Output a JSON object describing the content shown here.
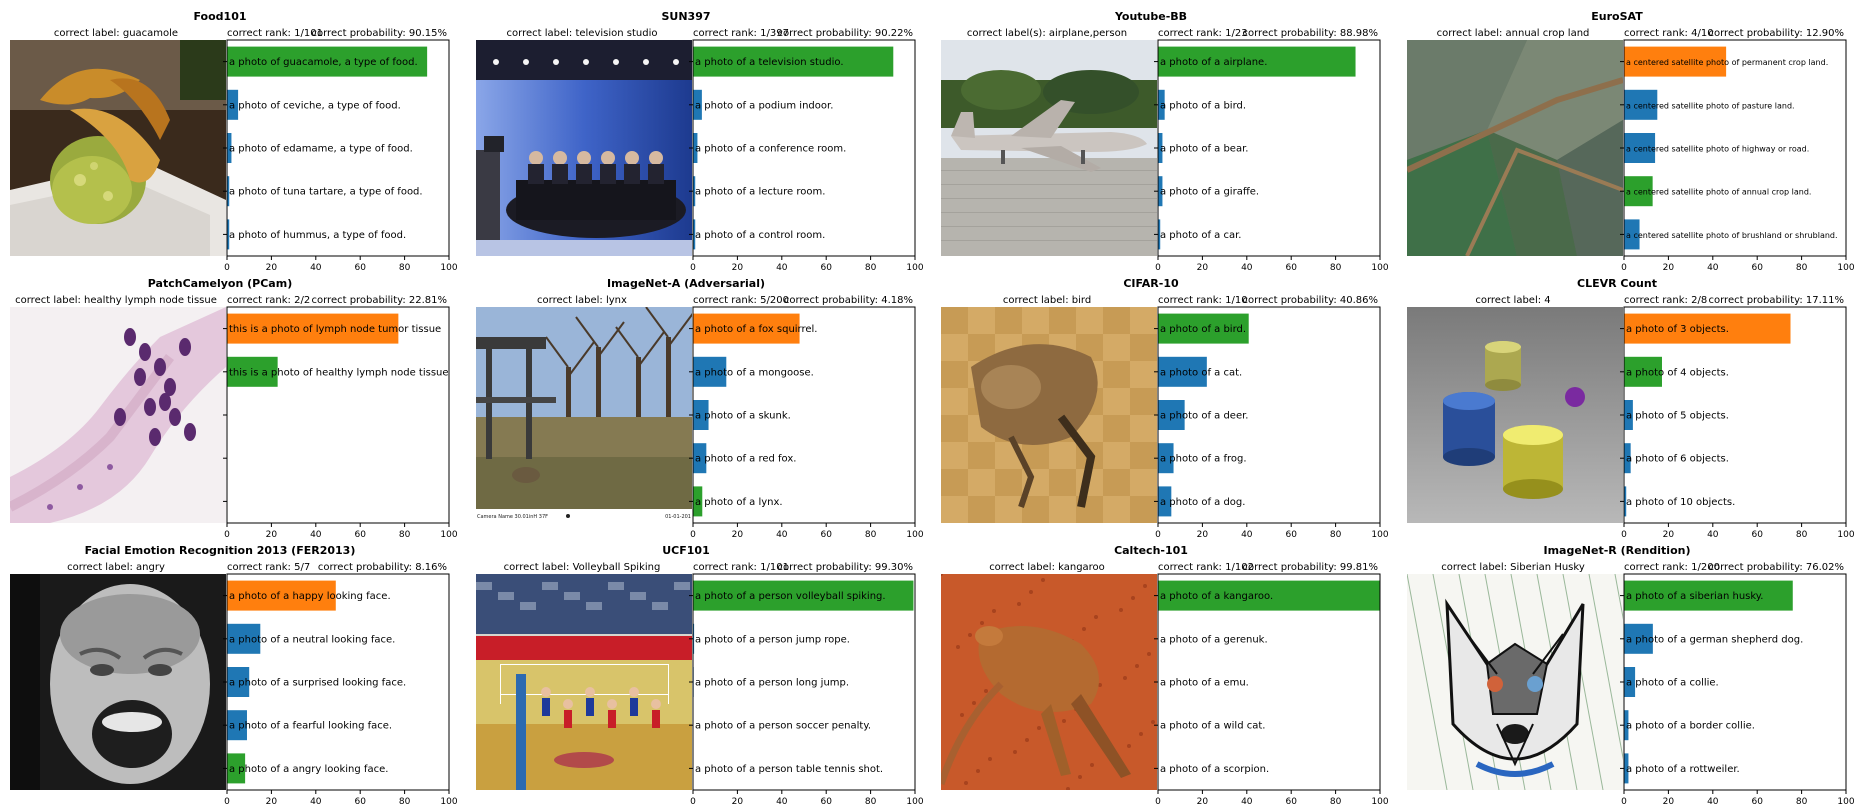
{
  "colors": {
    "green": "#2ca02c",
    "blue": "#1f77b4",
    "orange": "#ff7f0e"
  },
  "axis": {
    "xlim": [
      0,
      100
    ],
    "ticks": [
      "0",
      "20",
      "40",
      "60",
      "80",
      "100"
    ]
  },
  "chart_data": [
    {
      "type": "bar",
      "orientation": "horizontal",
      "title": "Food101",
      "correct_label": "correct label: guacamole",
      "rank": "correct rank: 1/101",
      "probability": "correct probability: 90.15%",
      "categories": [
        "a photo of guacamole, a type of food.",
        "a photo of ceviche, a type of food.",
        "a photo of edamame, a type of food.",
        "a photo of tuna tartare, a type of food.",
        "a photo of hummus, a type of food."
      ],
      "values": [
        90.15,
        5,
        2,
        1,
        1
      ],
      "colors": [
        "green",
        "blue",
        "blue",
        "blue",
        "blue"
      ],
      "image": "guacamole-photo"
    },
    {
      "type": "bar",
      "orientation": "horizontal",
      "title": "SUN397",
      "correct_label": "correct label: television studio",
      "rank": "correct rank: 1/397",
      "probability": "correct probability: 90.22%",
      "categories": [
        "a photo of a television studio.",
        "a photo of a podium indoor.",
        "a photo of a conference room.",
        "a photo of a lecture room.",
        "a photo of a control room."
      ],
      "values": [
        90.22,
        4,
        2,
        1,
        1
      ],
      "colors": [
        "green",
        "blue",
        "blue",
        "blue",
        "blue"
      ],
      "image": "television-studio-photo"
    },
    {
      "type": "bar",
      "orientation": "horizontal",
      "title": "Youtube-BB",
      "correct_label": "correct label(s): airplane,person",
      "rank": "correct rank: 1/23",
      "probability": "correct probability: 88.98%",
      "categories": [
        "a photo of a airplane.",
        "a photo of a bird.",
        "a photo of a bear.",
        "a photo of a giraffe.",
        "a photo of a car."
      ],
      "values": [
        88.98,
        3,
        2,
        2,
        1
      ],
      "colors": [
        "green",
        "blue",
        "blue",
        "blue",
        "blue"
      ],
      "image": "airplane-photo"
    },
    {
      "type": "bar",
      "orientation": "horizontal",
      "small_labels": true,
      "title": "EuroSAT",
      "correct_label": "correct label: annual crop land",
      "rank": "correct rank: 4/10",
      "probability": "correct probability: 12.90%",
      "categories": [
        "a centered satellite photo of permanent crop land.",
        "a centered satellite photo of pasture land.",
        "a centered satellite photo of highway or road.",
        "a centered satellite photo of annual crop land.",
        "a centered satellite photo of brushland or shrubland."
      ],
      "values": [
        46,
        15,
        14,
        12.9,
        7
      ],
      "colors": [
        "orange",
        "blue",
        "blue",
        "green",
        "blue"
      ],
      "image": "satellite-photo"
    },
    {
      "type": "bar",
      "orientation": "horizontal",
      "slots": 5,
      "title": "PatchCamelyon (PCam)",
      "correct_label": "correct label: healthy lymph node tissue",
      "rank": "correct rank: 2/2",
      "probability": "correct probability: 22.81%",
      "categories": [
        "this is a photo of lymph node tumor tissue",
        "this is a photo of healthy lymph node tissue"
      ],
      "values": [
        77.19,
        22.81
      ],
      "colors": [
        "orange",
        "green"
      ],
      "image": "histology-photo"
    },
    {
      "type": "bar",
      "orientation": "horizontal",
      "title": "ImageNet-A (Adversarial)",
      "correct_label": "correct label: lynx",
      "rank": "correct rank: 5/200",
      "probability": "correct probability: 4.18%",
      "categories": [
        "a photo of a fox squirrel.",
        "a photo of a mongoose.",
        "a photo of a skunk.",
        "a photo of a red fox.",
        "a photo of a lynx."
      ],
      "values": [
        48,
        15,
        7,
        6,
        4.18
      ],
      "colors": [
        "orange",
        "blue",
        "blue",
        "blue",
        "green"
      ],
      "image": "lynx-park-photo",
      "image_caption_left": "Camera Name 30.01inH 37F",
      "image_caption_right": "01-01-201"
    },
    {
      "type": "bar",
      "orientation": "horizontal",
      "title": "CIFAR-10",
      "correct_label": "correct label: bird",
      "rank": "correct rank: 1/10",
      "probability": "correct probability: 40.86%",
      "categories": [
        "a photo of a bird.",
        "a photo of a cat.",
        "a photo of a deer.",
        "a photo of a frog.",
        "a photo of a dog."
      ],
      "values": [
        40.86,
        22,
        12,
        7,
        6
      ],
      "colors": [
        "green",
        "blue",
        "blue",
        "blue",
        "blue"
      ],
      "image": "bird-lowres-photo"
    },
    {
      "type": "bar",
      "orientation": "horizontal",
      "title": "CLEVR Count",
      "correct_label": "correct label: 4",
      "rank": "correct rank: 2/8",
      "probability": "correct probability: 17.11%",
      "categories": [
        "a photo of 3 objects.",
        "a photo of 4 objects.",
        "a photo of 5 objects.",
        "a photo of 6 objects.",
        "a photo of 10 objects."
      ],
      "values": [
        75,
        17.11,
        4,
        3,
        1
      ],
      "colors": [
        "orange",
        "green",
        "blue",
        "blue",
        "blue"
      ],
      "image": "clevr-render"
    },
    {
      "type": "bar",
      "orientation": "horizontal",
      "title": "Facial Emotion Recognition 2013 (FER2013)",
      "correct_label": "correct label: angry",
      "rank": "correct rank: 5/7",
      "probability": "correct probability: 8.16%",
      "categories": [
        "a photo of a happy looking face.",
        "a photo of a neutral looking face.",
        "a photo of a surprised looking face.",
        "a photo of a fearful looking face.",
        "a photo of a angry looking face."
      ],
      "values": [
        49,
        15,
        10,
        9,
        8.16
      ],
      "colors": [
        "orange",
        "blue",
        "blue",
        "blue",
        "green"
      ],
      "image": "face-grayscale-photo"
    },
    {
      "type": "bar",
      "orientation": "horizontal",
      "title": "UCF101",
      "correct_label": "correct label: Volleyball Spiking",
      "rank": "correct rank: 1/101",
      "probability": "correct probability: 99.30%",
      "categories": [
        "a photo of a person volleyball spiking.",
        "a photo of a person jump rope.",
        "a photo of a person long jump.",
        "a photo of a person soccer penalty.",
        "a photo of a person table tennis shot."
      ],
      "values": [
        99.3,
        0.5,
        0.3,
        0.2,
        0.2
      ],
      "colors": [
        "green",
        "blue",
        "blue",
        "blue",
        "blue"
      ],
      "image": "volleyball-photo"
    },
    {
      "type": "bar",
      "orientation": "horizontal",
      "title": "Caltech-101",
      "correct_label": "correct label: kangaroo",
      "rank": "correct rank: 1/102",
      "probability": "correct probability: 99.81%",
      "categories": [
        "a photo of a kangaroo.",
        "a photo of a gerenuk.",
        "a photo of a emu.",
        "a photo of a wild cat.",
        "a photo of a scorpion."
      ],
      "values": [
        99.81,
        0.1,
        0.05,
        0.03,
        0.01
      ],
      "colors": [
        "green",
        "blue",
        "blue",
        "blue",
        "blue"
      ],
      "image": "kangaroo-photo"
    },
    {
      "type": "bar",
      "orientation": "horizontal",
      "title": "ImageNet-R (Rendition)",
      "correct_label": "correct label: Siberian Husky",
      "rank": "correct rank: 1/200",
      "probability": "correct probability: 76.02%",
      "categories": [
        "a photo of a siberian husky.",
        "a photo of a german shepherd dog.",
        "a photo of a collie.",
        "a photo of a border collie.",
        "a photo of a rottweiler."
      ],
      "values": [
        76.02,
        13,
        5,
        2,
        2
      ],
      "colors": [
        "green",
        "blue",
        "blue",
        "blue",
        "blue"
      ],
      "image": "husky-stained-glass"
    }
  ]
}
